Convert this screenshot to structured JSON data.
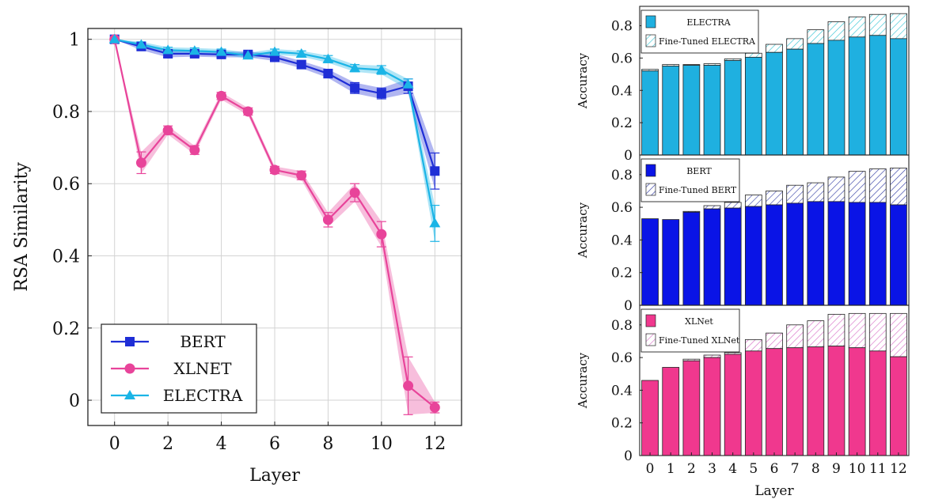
{
  "chart_data": [
    {
      "type": "line",
      "title": "",
      "xlabel": "Layer",
      "ylabel": "RSA Similarity",
      "xlim": [
        -1,
        13
      ],
      "ylim": [
        -0.07,
        1.03
      ],
      "x_ticks": [
        0,
        2,
        4,
        6,
        8,
        10,
        12
      ],
      "y_ticks": [
        0,
        0.2,
        0.4,
        0.6,
        0.8,
        1
      ],
      "y_tick_labels": [
        "0",
        "0.2",
        "0.4",
        "0.6",
        "0.8",
        "1"
      ],
      "grid": true,
      "legend_position": "bottom-left",
      "x": [
        0,
        1,
        2,
        3,
        4,
        5,
        6,
        7,
        8,
        9,
        10,
        11,
        12
      ],
      "series": [
        {
          "name": "BERT",
          "color": "#1f2ed6",
          "marker": "square",
          "values": [
            1.0,
            0.98,
            0.96,
            0.96,
            0.958,
            0.958,
            0.95,
            0.93,
            0.905,
            0.865,
            0.85,
            0.87,
            0.635
          ],
          "spread": [
            0,
            0.01,
            0.01,
            0.008,
            0.008,
            0.008,
            0.01,
            0.01,
            0.012,
            0.015,
            0.015,
            0.02,
            0.05
          ]
        },
        {
          "name": "XLNET",
          "color": "#e8449a",
          "marker": "circle",
          "values": [
            1.0,
            0.658,
            0.748,
            0.693,
            0.843,
            0.8,
            0.638,
            0.623,
            0.5,
            0.575,
            0.46,
            0.04,
            -0.02
          ],
          "spread": [
            0,
            0.03,
            0.012,
            0.012,
            0.01,
            0.01,
            0.01,
            0.012,
            0.02,
            0.025,
            0.035,
            0.08,
            0.015
          ]
        },
        {
          "name": "ELECTRA",
          "color": "#1ab4e6",
          "marker": "triangle",
          "values": [
            1.0,
            0.985,
            0.97,
            0.968,
            0.965,
            0.955,
            0.965,
            0.96,
            0.945,
            0.92,
            0.915,
            0.875,
            0.49
          ],
          "spread": [
            0,
            0.008,
            0.008,
            0.008,
            0.008,
            0.008,
            0.008,
            0.008,
            0.01,
            0.01,
            0.012,
            0.015,
            0.05
          ]
        }
      ]
    },
    {
      "type": "bar",
      "title": "",
      "xlabel": "Layer",
      "ylabel": "Accuracy",
      "categories": [
        "0",
        "1",
        "2",
        "3",
        "4",
        "5",
        "6",
        "7",
        "8",
        "9",
        "10",
        "11",
        "12"
      ],
      "ylim": [
        0,
        0.92
      ],
      "y_ticks": [
        0,
        0.2,
        0.4,
        0.6,
        0.8
      ],
      "y_tick_labels": [
        "0",
        "0.2",
        "0.4",
        "0.6",
        "0.8"
      ],
      "stacked_panels": [
        {
          "model": "ELECTRA",
          "base_label": "ELECTRA",
          "finetuned_label": "Fine-Tuned ELECTRA",
          "color": "#1fb0e0",
          "hatch_color": "#3cc7d6",
          "base": [
            0.52,
            0.55,
            0.555,
            0.555,
            0.585,
            0.605,
            0.635,
            0.655,
            0.69,
            0.71,
            0.73,
            0.74,
            0.72
          ],
          "finetuned": [
            0.53,
            0.56,
            0.56,
            0.565,
            0.595,
            0.63,
            0.685,
            0.72,
            0.775,
            0.825,
            0.855,
            0.87,
            0.875
          ]
        },
        {
          "model": "BERT",
          "base_label": "BERT",
          "finetuned_label": "Fine-Tuned BERT",
          "color": "#0a14e6",
          "hatch_color": "#3a44a8",
          "base": [
            0.53,
            0.525,
            0.57,
            0.59,
            0.595,
            0.605,
            0.615,
            0.625,
            0.635,
            0.635,
            0.63,
            0.63,
            0.615
          ],
          "finetuned": [
            0.53,
            0.525,
            0.575,
            0.61,
            0.63,
            0.675,
            0.7,
            0.735,
            0.75,
            0.785,
            0.82,
            0.835,
            0.84
          ]
        },
        {
          "model": "XLNet",
          "base_label": "XLNet",
          "finetuned_label": "Fine-Tuned XLNet",
          "color": "#f0388e",
          "hatch_color": "#d870c8",
          "base": [
            0.46,
            0.54,
            0.58,
            0.6,
            0.62,
            0.64,
            0.655,
            0.66,
            0.665,
            0.67,
            0.66,
            0.64,
            0.605
          ],
          "finetuned": [
            0.46,
            0.54,
            0.59,
            0.615,
            0.63,
            0.71,
            0.75,
            0.8,
            0.825,
            0.865,
            0.87,
            0.87,
            0.87
          ]
        }
      ]
    }
  ]
}
